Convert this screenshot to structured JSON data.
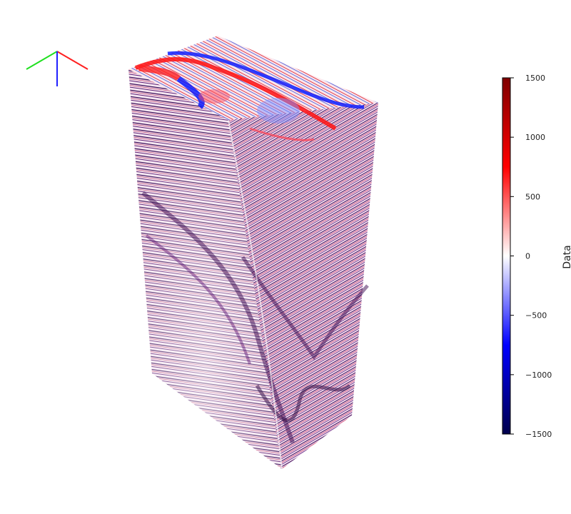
{
  "colorbar": {
    "title": "Data",
    "min": -1500,
    "max": 1500,
    "ticks": [
      {
        "value": 1500,
        "label": "1500"
      },
      {
        "value": 1000,
        "label": "1000"
      },
      {
        "value": 500,
        "label": "500"
      },
      {
        "value": 0,
        "label": "0"
      },
      {
        "value": -500,
        "label": "−500"
      },
      {
        "value": -1000,
        "label": "−1000"
      },
      {
        "value": -1500,
        "label": "−1500"
      }
    ],
    "colormap": "seismic",
    "colors": {
      "low": "#00004c",
      "negative": "#0000ff",
      "zero": "#ffffff",
      "positive": "#ff0000",
      "high": "#7f0000"
    }
  },
  "orientation_axes": {
    "x_color": "#ff2020",
    "y_color": "#20e020",
    "z_color": "#2020ff"
  },
  "volume": {
    "description_icon": "seismic-volume-cube"
  }
}
